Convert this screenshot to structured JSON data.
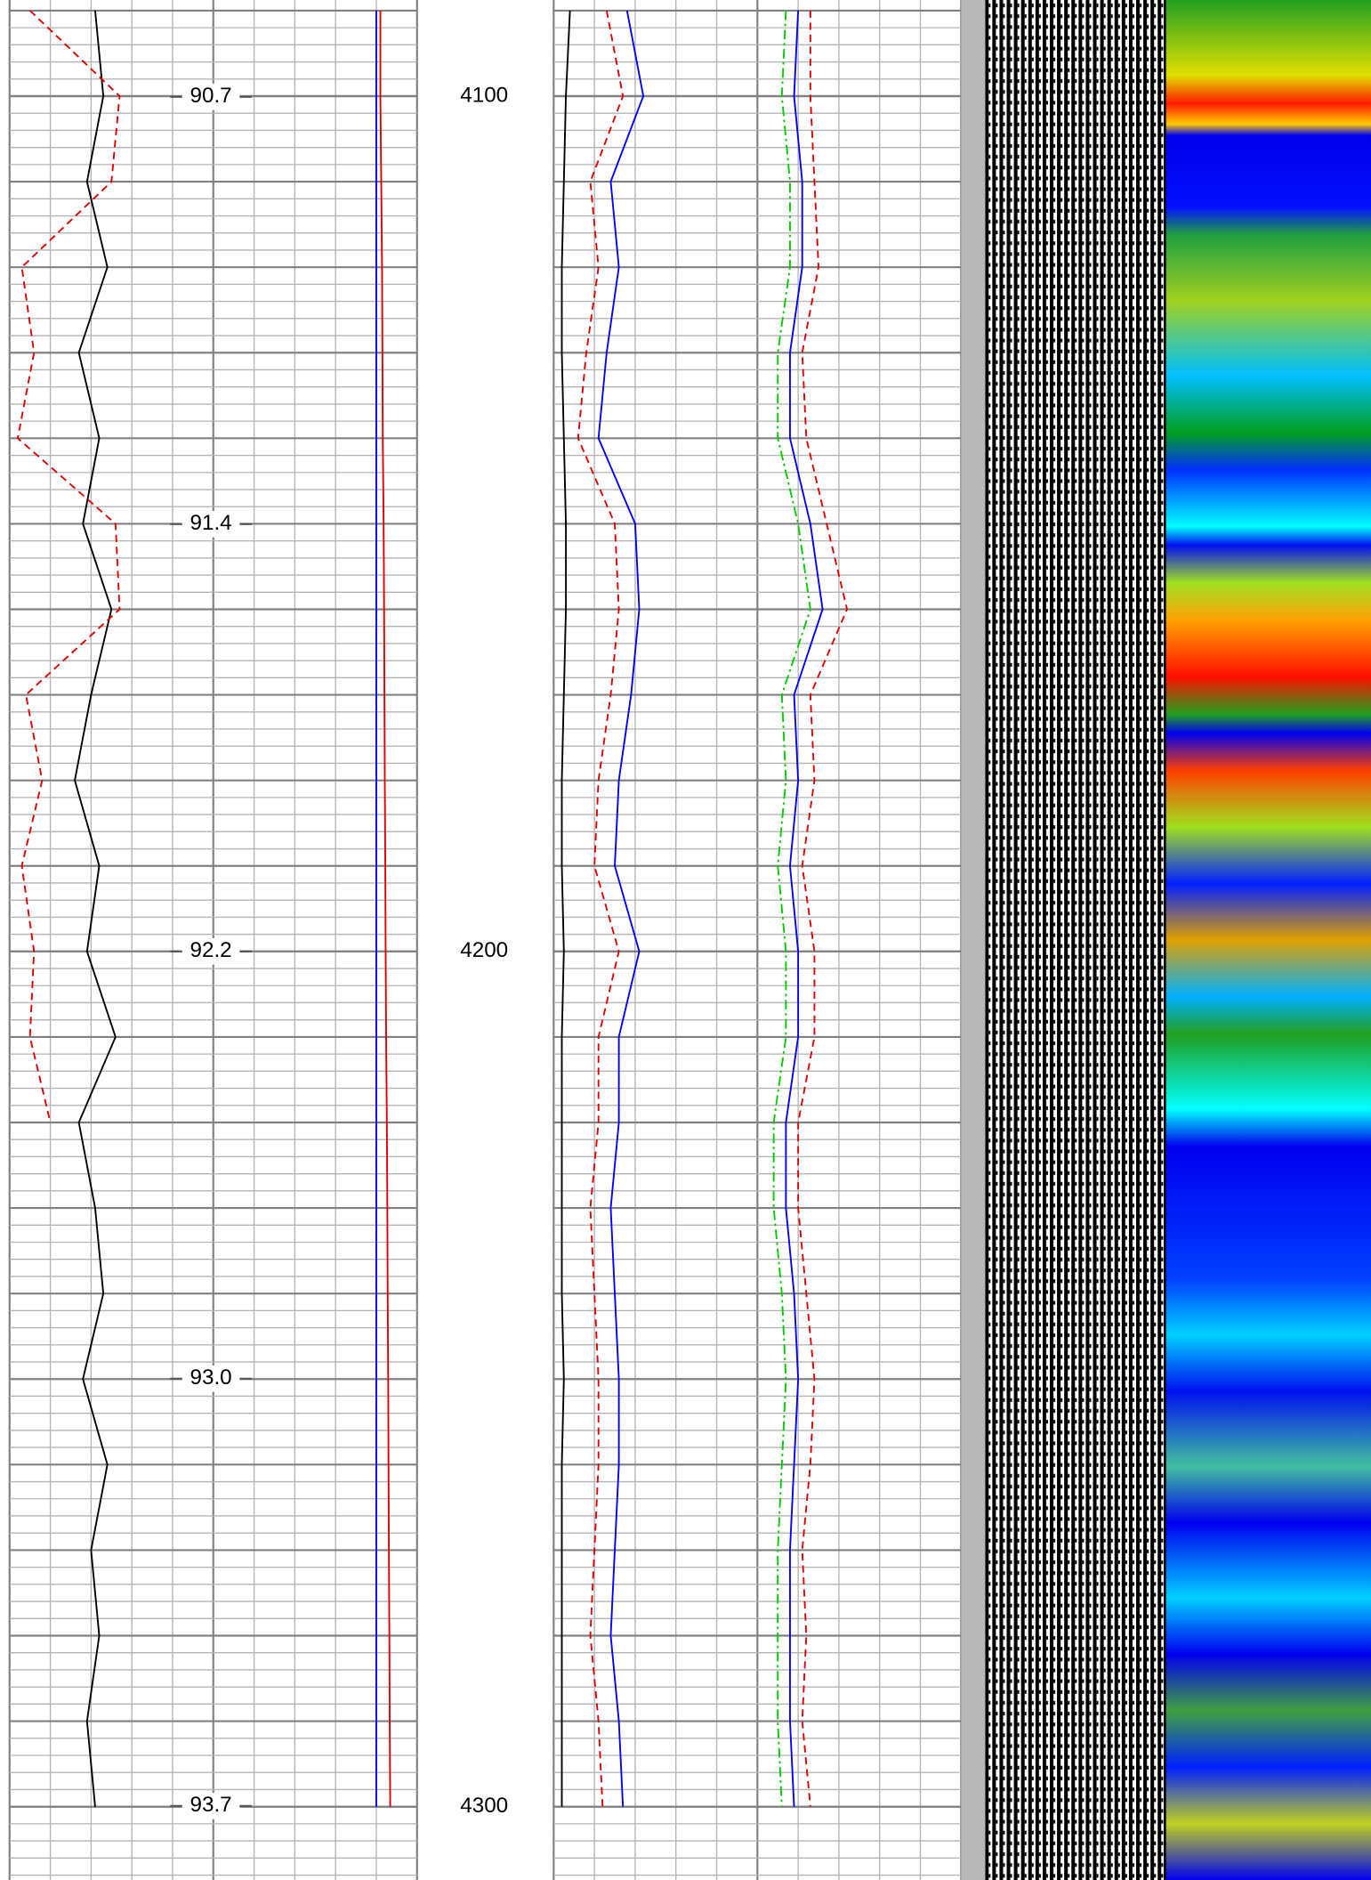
{
  "chart_data": {
    "type": "well-log",
    "depth": [
      4090,
      4100,
      4110,
      4120,
      4130,
      4140,
      4150,
      4160,
      4170,
      4180,
      4190,
      4200,
      4210,
      4220,
      4230,
      4240,
      4250,
      4260,
      4270,
      4280,
      4290,
      4300
    ],
    "ylim": [
      4088.76,
      4308.57
    ],
    "yticks": [
      4100,
      4200,
      4300
    ],
    "y2lim": [
      90.53,
      93.83
    ],
    "y2ticks": [
      90.7,
      {
        "value": 91.45,
        "label": "91.4"
      },
      92.2,
      {
        "value": 92.95,
        "label": "93.0"
      },
      93.7
    ],
    "grid": true,
    "tracks": [
      {
        "xlim": [
          0,
          100
        ],
        "series": [
          {
            "color": "#000000",
            "dash": "solid",
            "values": [
              21,
              23,
              19,
              24,
              17,
              22,
              18,
              25,
              20,
              16,
              22,
              19,
              26,
              17,
              21,
              23,
              18,
              24,
              20,
              22,
              19,
              21
            ]
          },
          {
            "color": "#e00000",
            "dash": "dashed",
            "values": [
              5,
              27,
              25,
              3,
              6,
              2,
              26,
              27,
              4,
              8,
              3,
              6,
              5,
              10,
              null,
              null,
              null,
              null,
              null,
              null,
              null,
              null
            ]
          },
          {
            "color": "#0000ff",
            "dash": "solid",
            "values": [
              90,
              90,
              90,
              90,
              90,
              90,
              90,
              90,
              90,
              90,
              90,
              90,
              90,
              90,
              90,
              90,
              90,
              90,
              90,
              90,
              90,
              90
            ]
          },
          {
            "color": "#e00000",
            "dash": "solid",
            "values": [
              91,
              91,
              91.2,
              91.4,
              91.5,
              91.6,
              91.8,
              91.9,
              92,
              92.1,
              92.2,
              92.3,
              92.4,
              92.6,
              92.7,
              92.8,
              92.9,
              93,
              93.1,
              93.2,
              93.3,
              93.4
            ]
          }
        ]
      },
      {
        "xlim": [
          0,
          100
        ],
        "series": [
          {
            "color": "#000000",
            "dash": "solid",
            "values": [
              4,
              3,
              2.5,
              2,
              2,
              2.5,
              3,
              3,
              2.5,
              2,
              2,
              2.5,
              2,
              2,
              2,
              2,
              2.5,
              2,
              2,
              2,
              2,
              2
            ]
          },
          {
            "color": "#e00000",
            "dash": "dashed",
            "values": [
              13,
              17,
              9,
              11,
              8,
              6,
              15,
              16,
              14,
              11,
              10,
              16,
              11,
              11,
              9,
              10,
              11,
              11,
              10,
              9,
              11,
              12
            ]
          },
          {
            "color": "#0000ff",
            "dash": "solid",
            "values": [
              18,
              22,
              14,
              16,
              13,
              11,
              20,
              21,
              19,
              16,
              15,
              21,
              16,
              16,
              14,
              15,
              16,
              16,
              15,
              14,
              16,
              17
            ]
          },
          {
            "color": "#00cc00",
            "dash": "dashdot",
            "values": [
              57,
              56,
              58,
              58,
              55,
              55,
              60,
              63,
              56,
              57,
              55,
              57,
              57,
              54,
              54,
              56,
              57,
              56,
              55,
              55,
              55,
              56
            ]
          },
          {
            "color": "#0000ff",
            "dash": "solid",
            "values": [
              60,
              59,
              61,
              61,
              58,
              58,
              63,
              66,
              59,
              60,
              58,
              60,
              60,
              57,
              57,
              59,
              60,
              59,
              58,
              58,
              58,
              59
            ]
          },
          {
            "color": "#e00000",
            "dash": "dashed",
            "values": [
              63,
              63,
              64,
              65,
              61,
              62,
              67,
              72,
              63,
              64,
              61,
              64,
              64,
              60,
              60,
              62,
              64,
              63,
              61,
              62,
              61,
              63
            ]
          }
        ]
      }
    ]
  }
}
